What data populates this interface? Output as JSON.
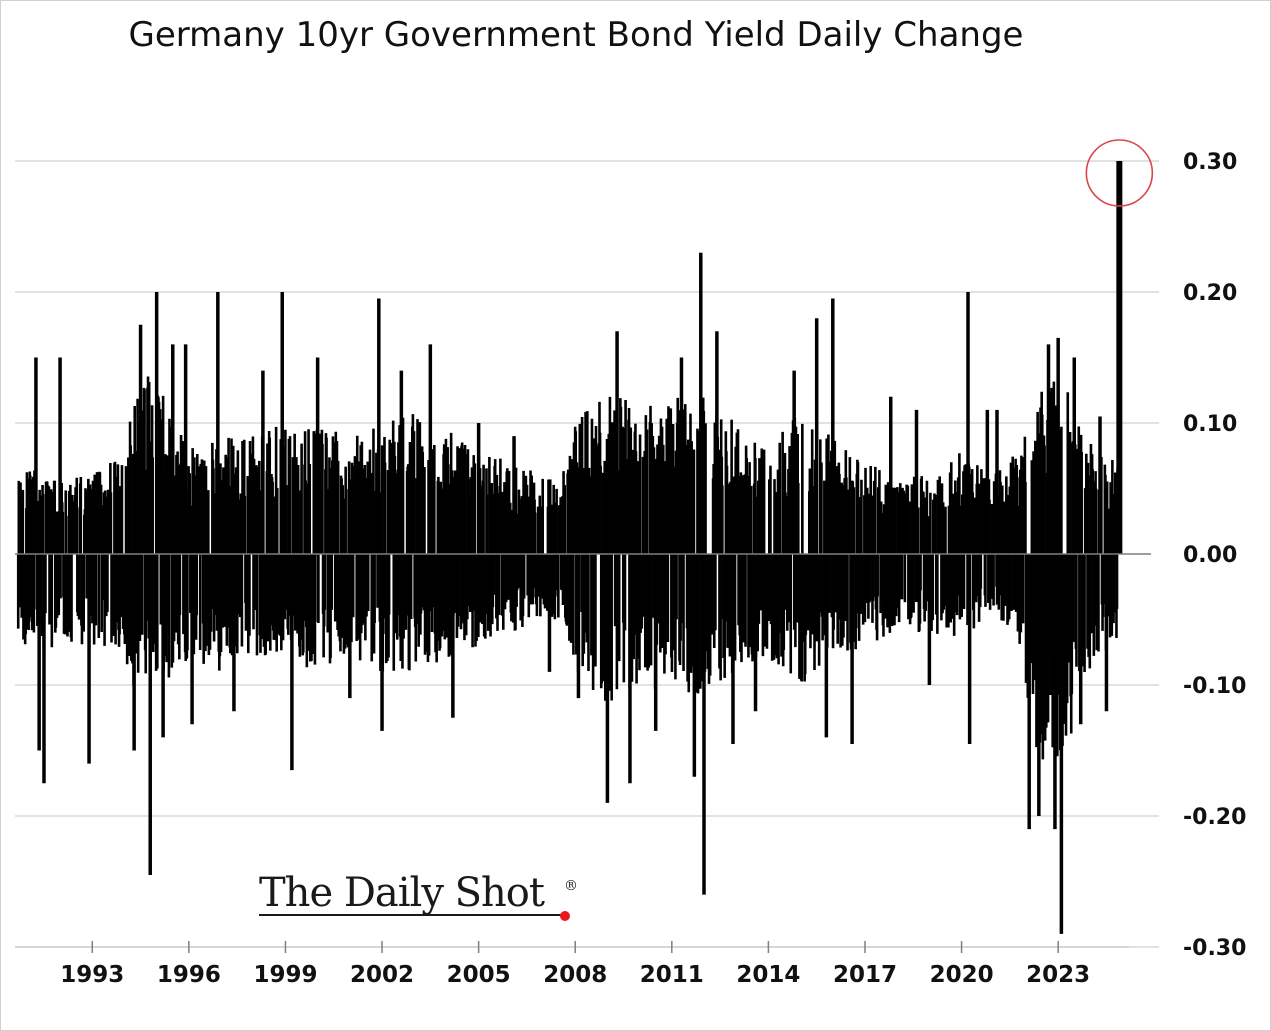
{
  "chart_data": {
    "type": "bar",
    "title": "Germany 10yr Government Bond Yield Daily Change",
    "xlabel": "",
    "ylabel": "",
    "ylim": [
      -0.3,
      0.3
    ],
    "xlim": [
      1990.6,
      2025.2
    ],
    "y_ticks": [
      0.3,
      0.2,
      0.1,
      0.0,
      -0.1,
      -0.2,
      -0.3
    ],
    "y_tick_labels": [
      "0.30",
      "0.20",
      "0.10",
      "0.00",
      "-0.10",
      "-0.20",
      "-0.30"
    ],
    "x_ticks": [
      1993,
      1996,
      1999,
      2002,
      2005,
      2008,
      2011,
      2014,
      2017,
      2020,
      2023
    ],
    "x_tick_labels": [
      "1993",
      "1996",
      "1999",
      "2002",
      "2005",
      "2008",
      "2011",
      "2014",
      "2017",
      "2020",
      "2023"
    ],
    "grid": true,
    "y_axis_position": "right",
    "highlight": {
      "x": 2024.9,
      "y": 0.3,
      "note": "latest daily change circled in red"
    },
    "envelope": [
      [
        1990.7,
        0.06,
        -0.07
      ],
      [
        1991.0,
        0.07,
        -0.08
      ],
      [
        1992.0,
        0.06,
        -0.07
      ],
      [
        1993.0,
        0.06,
        -0.07
      ],
      [
        1994.0,
        0.08,
        -0.08
      ],
      [
        1994.4,
        0.14,
        -0.11
      ],
      [
        1995.0,
        0.14,
        -0.11
      ],
      [
        1995.6,
        0.1,
        -0.09
      ],
      [
        1996.0,
        0.08,
        -0.08
      ],
      [
        1997.0,
        0.09,
        -0.09
      ],
      [
        1998.0,
        0.09,
        -0.08
      ],
      [
        1999.0,
        0.1,
        -0.08
      ],
      [
        2000.0,
        0.11,
        -0.09
      ],
      [
        2001.0,
        0.09,
        -0.08
      ],
      [
        2002.0,
        0.1,
        -0.09
      ],
      [
        2003.0,
        0.11,
        -0.09
      ],
      [
        2004.0,
        0.1,
        -0.08
      ],
      [
        2005.0,
        0.08,
        -0.07
      ],
      [
        2006.0,
        0.07,
        -0.06
      ],
      [
        2007.0,
        0.06,
        -0.05
      ],
      [
        2007.6,
        0.07,
        -0.06
      ],
      [
        2008.0,
        0.1,
        -0.09
      ],
      [
        2009.0,
        0.13,
        -0.12
      ],
      [
        2010.0,
        0.11,
        -0.1
      ],
      [
        2011.0,
        0.12,
        -0.11
      ],
      [
        2012.0,
        0.12,
        -0.11
      ],
      [
        2013.0,
        0.1,
        -0.09
      ],
      [
        2014.0,
        0.08,
        -0.08
      ],
      [
        2015.0,
        0.11,
        -0.1
      ],
      [
        2016.0,
        0.09,
        -0.08
      ],
      [
        2017.0,
        0.07,
        -0.07
      ],
      [
        2018.0,
        0.06,
        -0.06
      ],
      [
        2019.0,
        0.06,
        -0.06
      ],
      [
        2020.0,
        0.08,
        -0.07
      ],
      [
        2021.0,
        0.06,
        -0.05
      ],
      [
        2021.8,
        0.08,
        -0.07
      ],
      [
        2022.3,
        0.12,
        -0.15
      ],
      [
        2022.8,
        0.14,
        -0.17
      ],
      [
        2023.3,
        0.13,
        -0.15
      ],
      [
        2023.8,
        0.09,
        -0.1
      ],
      [
        2024.3,
        0.08,
        -0.08
      ],
      [
        2024.8,
        0.07,
        -0.07
      ]
    ],
    "spikes": [
      [
        1991.25,
        0.15
      ],
      [
        1991.35,
        -0.15
      ],
      [
        1991.5,
        -0.175
      ],
      [
        1992.0,
        0.15
      ],
      [
        1992.9,
        -0.16
      ],
      [
        1994.3,
        -0.15
      ],
      [
        1994.5,
        0.175
      ],
      [
        1994.8,
        -0.245
      ],
      [
        1995.0,
        0.2
      ],
      [
        1995.2,
        -0.14
      ],
      [
        1995.5,
        0.16
      ],
      [
        1995.9,
        0.16
      ],
      [
        1996.1,
        -0.13
      ],
      [
        1996.9,
        0.2
      ],
      [
        1997.4,
        -0.12
      ],
      [
        1998.3,
        0.14
      ],
      [
        1998.9,
        0.2
      ],
      [
        1999.2,
        -0.165
      ],
      [
        2000.0,
        0.15
      ],
      [
        2001.0,
        -0.11
      ],
      [
        2001.9,
        0.195
      ],
      [
        2002.0,
        -0.135
      ],
      [
        2002.6,
        0.14
      ],
      [
        2003.5,
        0.16
      ],
      [
        2004.2,
        -0.125
      ],
      [
        2005.0,
        0.1
      ],
      [
        2006.1,
        0.09
      ],
      [
        2007.2,
        -0.09
      ],
      [
        2008.1,
        -0.11
      ],
      [
        2009.0,
        -0.19
      ],
      [
        2009.3,
        0.17
      ],
      [
        2009.7,
        -0.175
      ],
      [
        2010.5,
        -0.135
      ],
      [
        2011.3,
        0.15
      ],
      [
        2011.7,
        -0.17
      ],
      [
        2011.9,
        0.23
      ],
      [
        2012.0,
        -0.26
      ],
      [
        2012.4,
        0.17
      ],
      [
        2012.9,
        -0.145
      ],
      [
        2013.6,
        -0.12
      ],
      [
        2014.8,
        0.14
      ],
      [
        2015.5,
        0.18
      ],
      [
        2015.8,
        -0.14
      ],
      [
        2016.0,
        0.195
      ],
      [
        2016.6,
        -0.145
      ],
      [
        2017.8,
        0.12
      ],
      [
        2018.6,
        0.11
      ],
      [
        2019.0,
        -0.1
      ],
      [
        2020.2,
        0.2
      ],
      [
        2020.25,
        -0.145
      ],
      [
        2020.8,
        0.11
      ],
      [
        2021.1,
        0.11
      ],
      [
        2022.1,
        -0.21
      ],
      [
        2022.4,
        -0.2
      ],
      [
        2022.7,
        0.16
      ],
      [
        2022.9,
        -0.21
      ],
      [
        2023.0,
        0.165
      ],
      [
        2023.1,
        -0.29
      ],
      [
        2023.5,
        0.15
      ],
      [
        2023.7,
        -0.13
      ],
      [
        2024.3,
        0.105
      ],
      [
        2024.5,
        -0.12
      ],
      [
        2024.9,
        0.3
      ]
    ]
  },
  "watermark": {
    "text": "The Daily Shot",
    "mark": "®"
  }
}
